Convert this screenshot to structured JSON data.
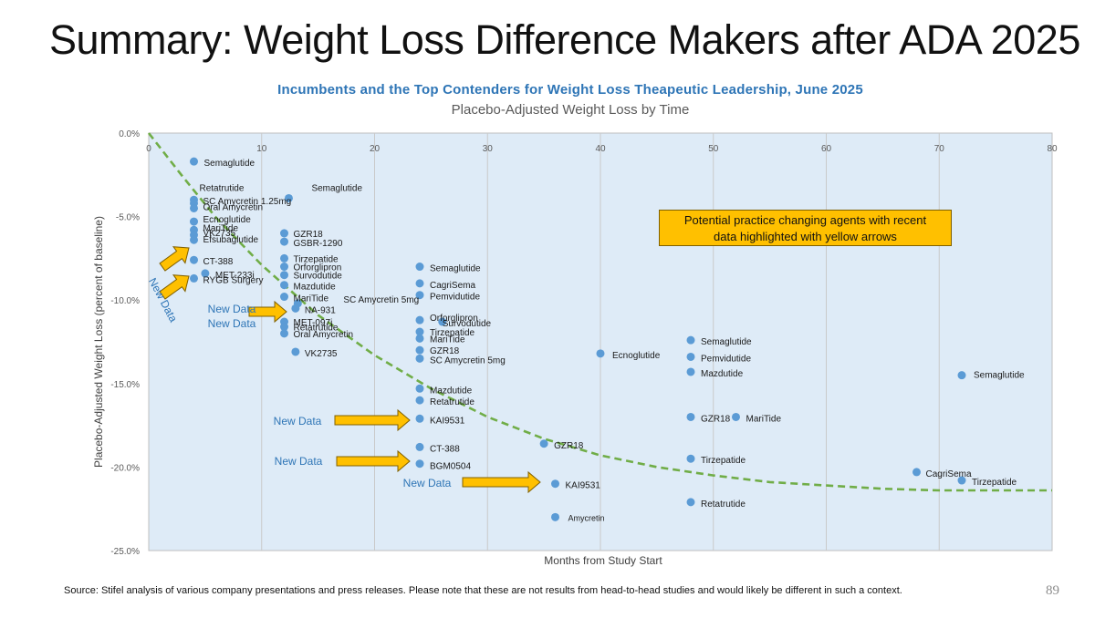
{
  "slide": {
    "title": "Summary: Weight Loss Difference Makers after ADA 2025",
    "page_number": "89",
    "source": "Source: Stifel analysis of various company presentations and press releases. Please note that these are not results from head-to-head studies and would likely be different in such a context."
  },
  "callout": {
    "line1": "Potential practice changing agents with recent",
    "line2": "data highlighted with yellow arrows"
  },
  "new_data_labels": [
    "New Data",
    "New Data",
    "New Data",
    "New Data",
    "New Data",
    "New Data"
  ],
  "colors": {
    "marker": "#5b9bd5",
    "plot_bg": "#deebf7",
    "trend": "#70ad47",
    "arrow_fill": "#ffc000",
    "arrow_stroke": "#806000",
    "title_blue": "#2e75b6"
  },
  "chart_data": {
    "type": "scatter",
    "title": "Incumbents and the Top Contenders for Weight Loss Theapeutic Leadership, June 2025",
    "subtitle": "Placebo-Adjusted Weight Loss by Time",
    "xlabel": "Months from Study Start",
    "ylabel": "Placebo-Adjusted Weight Loss (percent of baseline)",
    "xlim": [
      0,
      80
    ],
    "ylim": [
      -25,
      0
    ],
    "x_ticks": [
      0,
      10,
      20,
      30,
      40,
      50,
      60,
      70,
      80
    ],
    "y_ticks": [
      0,
      -5,
      -10,
      -15,
      -20,
      -25
    ],
    "y_tick_labels": [
      "0.0%",
      "-5.0%",
      "-10.0%",
      "-15.0%",
      "-20.0%",
      "-25.0%"
    ],
    "grid": true,
    "trendline": {
      "style": "dashed",
      "points": [
        [
          0,
          0
        ],
        [
          3,
          -2.6
        ],
        [
          6,
          -5.1
        ],
        [
          10,
          -7.9
        ],
        [
          15,
          -10.9
        ],
        [
          20,
          -13.3
        ],
        [
          25,
          -15.3
        ],
        [
          30,
          -17.0
        ],
        [
          35,
          -18.3
        ],
        [
          40,
          -19.3
        ],
        [
          45,
          -20.0
        ],
        [
          50,
          -20.5
        ],
        [
          55,
          -20.9
        ],
        [
          60,
          -21.1
        ],
        [
          65,
          -21.3
        ],
        [
          70,
          -21.4
        ],
        [
          75,
          -21.4
        ],
        [
          80,
          -21.4
        ]
      ]
    },
    "points": [
      {
        "x": 4,
        "y": -1.7,
        "label": "Semaglutide"
      },
      {
        "x": 4,
        "y": -4.0,
        "label": "Retatrutide"
      },
      {
        "x": 4,
        "y": -4.2,
        "label": "SC Amycretin 1.25mg"
      },
      {
        "x": 4,
        "y": -4.5,
        "label": "Oral Amycretin"
      },
      {
        "x": 4,
        "y": -5.3,
        "label": "Ecnoglutide"
      },
      {
        "x": 4,
        "y": -5.8,
        "label": "MariTide"
      },
      {
        "x": 4,
        "y": -6.1,
        "label": "VK2735"
      },
      {
        "x": 4,
        "y": -6.4,
        "label": "Efsubaglutide"
      },
      {
        "x": 4,
        "y": -7.6,
        "label": "CT-388"
      },
      {
        "x": 5,
        "y": -8.4,
        "label": "MET-233i"
      },
      {
        "x": 4,
        "y": -8.7,
        "label": "RYGB Surgery"
      },
      {
        "x": 12.4,
        "y": -3.9,
        "label": "Semaglutide"
      },
      {
        "x": 12,
        "y": -6.0,
        "label": "GZR18"
      },
      {
        "x": 12,
        "y": -6.5,
        "label": "GSBR-1290"
      },
      {
        "x": 12,
        "y": -7.5,
        "label": "Tirzepatide"
      },
      {
        "x": 12,
        "y": -8.0,
        "label": "Orforglipron"
      },
      {
        "x": 12,
        "y": -8.5,
        "label": "Survodutide"
      },
      {
        "x": 12,
        "y": -9.1,
        "label": "Mazdutide"
      },
      {
        "x": 12,
        "y": -9.8,
        "label": "MariTide"
      },
      {
        "x": 13.2,
        "y": -10.2,
        "label": "SC Amycretin 5mg"
      },
      {
        "x": 13,
        "y": -10.5,
        "label": "NA-931"
      },
      {
        "x": 12,
        "y": -11.3,
        "label": "MET-097i"
      },
      {
        "x": 12,
        "y": -11.6,
        "label": "Retatrutide"
      },
      {
        "x": 12,
        "y": -12.0,
        "label": "Oral Amycretin"
      },
      {
        "x": 13,
        "y": -13.1,
        "label": "VK2735"
      },
      {
        "x": 24,
        "y": -8.0,
        "label": "Semaglutide"
      },
      {
        "x": 24,
        "y": -9.0,
        "label": "CagriSema"
      },
      {
        "x": 24,
        "y": -9.7,
        "label": "Pemvidutide"
      },
      {
        "x": 24,
        "y": -11.2,
        "label": "Orforglipron"
      },
      {
        "x": 26,
        "y": -11.3,
        "label": "Survodutide"
      },
      {
        "x": 24,
        "y": -11.9,
        "label": "Tirzepatide"
      },
      {
        "x": 24,
        "y": -12.3,
        "label": "MariTide"
      },
      {
        "x": 24,
        "y": -13.0,
        "label": "GZR18"
      },
      {
        "x": 24,
        "y": -13.5,
        "label": "SC Amycretin 5mg"
      },
      {
        "x": 24,
        "y": -15.3,
        "label": "Mazdutide"
      },
      {
        "x": 24,
        "y": -16.0,
        "label": "Retatrutide"
      },
      {
        "x": 24,
        "y": -17.1,
        "label": "KAI9531"
      },
      {
        "x": 24,
        "y": -18.8,
        "label": "CT-388"
      },
      {
        "x": 24,
        "y": -19.8,
        "label": "BGM0504"
      },
      {
        "x": 40,
        "y": -13.2,
        "label": "Ecnoglutide"
      },
      {
        "x": 35,
        "y": -18.6,
        "label": "GZR18"
      },
      {
        "x": 36,
        "y": -21.0,
        "label": "KAI9531"
      },
      {
        "x": 36,
        "y": -23.0,
        "label": "Amycretin"
      },
      {
        "x": 48,
        "y": -12.4,
        "label": "Semaglutide"
      },
      {
        "x": 48,
        "y": -13.4,
        "label": "Pemvidutide"
      },
      {
        "x": 48,
        "y": -14.3,
        "label": "Mazdutide"
      },
      {
        "x": 48,
        "y": -17.0,
        "label": "GZR18"
      },
      {
        "x": 52,
        "y": -17.0,
        "label": "MariTide"
      },
      {
        "x": 48,
        "y": -19.5,
        "label": "Tirzepatide"
      },
      {
        "x": 48,
        "y": -22.1,
        "label": "Retatrutide"
      },
      {
        "x": 72,
        "y": -14.5,
        "label": "Semaglutide"
      },
      {
        "x": 68,
        "y": -20.3,
        "label": "CagriSema"
      },
      {
        "x": 72,
        "y": -20.8,
        "label": "Tirzepatide"
      }
    ]
  }
}
